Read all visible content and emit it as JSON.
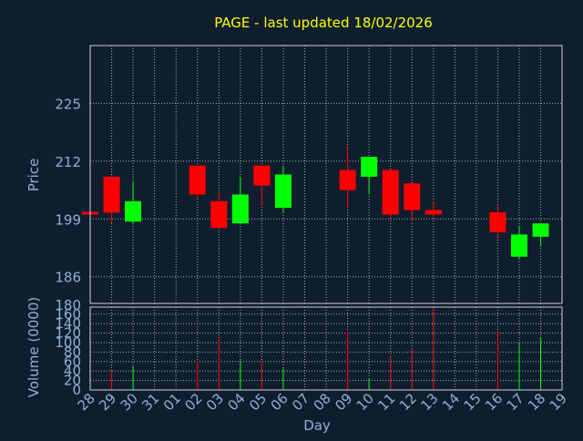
{
  "chart_data": {
    "type": "candlestick",
    "title": "PAGE - last updated 18/02/2026",
    "colors": {
      "background": "#0f1e2e",
      "title": "#ffff00",
      "axis_text": "#8fb0d6",
      "grid": "#c8d2dc",
      "frame": "#c8d2dc",
      "up": "#00ff00",
      "down": "#ff0000"
    },
    "x_tick_labels": [
      "28",
      "29",
      "30",
      "31",
      "01",
      "02",
      "03",
      "04",
      "05",
      "06",
      "07",
      "08",
      "09",
      "10",
      "11",
      "12",
      "13",
      "14",
      "15",
      "16",
      "17",
      "18",
      "19"
    ],
    "xlabel": "Day",
    "price_panel": {
      "ylabel": "Price",
      "ylim": [
        180,
        238
      ],
      "yticks": [
        186,
        199,
        212,
        225
      ],
      "grid": true
    },
    "volume_panel": {
      "ylabel": "Volume (0000)",
      "ylim": [
        0,
        175
      ],
      "yticks": [
        0,
        20,
        40,
        60,
        80,
        100,
        120,
        140,
        160,
        180
      ],
      "grid": true
    },
    "candles": [
      {
        "day": "28",
        "open": 200.6,
        "high": 201.0,
        "low": 200.0,
        "close": 200.0,
        "volume": 0
      },
      {
        "day": "29",
        "open": 208.5,
        "high": 208.8,
        "low": 198.0,
        "close": 200.4,
        "volume": 40
      },
      {
        "day": "30",
        "open": 198.4,
        "high": 207.5,
        "low": 198.0,
        "close": 203.0,
        "volume": 50
      },
      {
        "day": "02",
        "open": 211.0,
        "high": 211.0,
        "low": 203.5,
        "close": 204.5,
        "volume": 60
      },
      {
        "day": "03",
        "open": 203.0,
        "high": 205.0,
        "low": 196.5,
        "close": 197.0,
        "volume": 108
      },
      {
        "day": "04",
        "open": 198.0,
        "high": 208.5,
        "low": 198.0,
        "close": 204.5,
        "volume": 62
      },
      {
        "day": "05",
        "open": 211.0,
        "high": 211.0,
        "low": 202.0,
        "close": 206.5,
        "volume": 60
      },
      {
        "day": "06",
        "open": 201.5,
        "high": 211.0,
        "low": 200.5,
        "close": 209.0,
        "volume": 45
      },
      {
        "day": "09",
        "open": 210.0,
        "high": 215.5,
        "low": 201.5,
        "close": 205.5,
        "volume": 123
      },
      {
        "day": "10",
        "open": 208.5,
        "high": 213.0,
        "low": 204.5,
        "close": 213.0,
        "volume": 25
      },
      {
        "day": "11",
        "open": 210.0,
        "high": 210.0,
        "low": 199.0,
        "close": 200.0,
        "volume": 70
      },
      {
        "day": "12",
        "open": 207.0,
        "high": 207.0,
        "low": 198.5,
        "close": 201.0,
        "volume": 90
      },
      {
        "day": "13",
        "open": 201.0,
        "high": 203.0,
        "low": 199.5,
        "close": 200.0,
        "volume": 175
      },
      {
        "day": "16",
        "open": 200.5,
        "high": 202.0,
        "low": 195.0,
        "close": 196.0,
        "volume": 122
      },
      {
        "day": "17",
        "open": 190.5,
        "high": 197.5,
        "low": 190.0,
        "close": 195.5,
        "volume": 98
      },
      {
        "day": "18",
        "open": 195.0,
        "high": 198.0,
        "low": 193.0,
        "close": 198.0,
        "volume": 110
      }
    ]
  }
}
